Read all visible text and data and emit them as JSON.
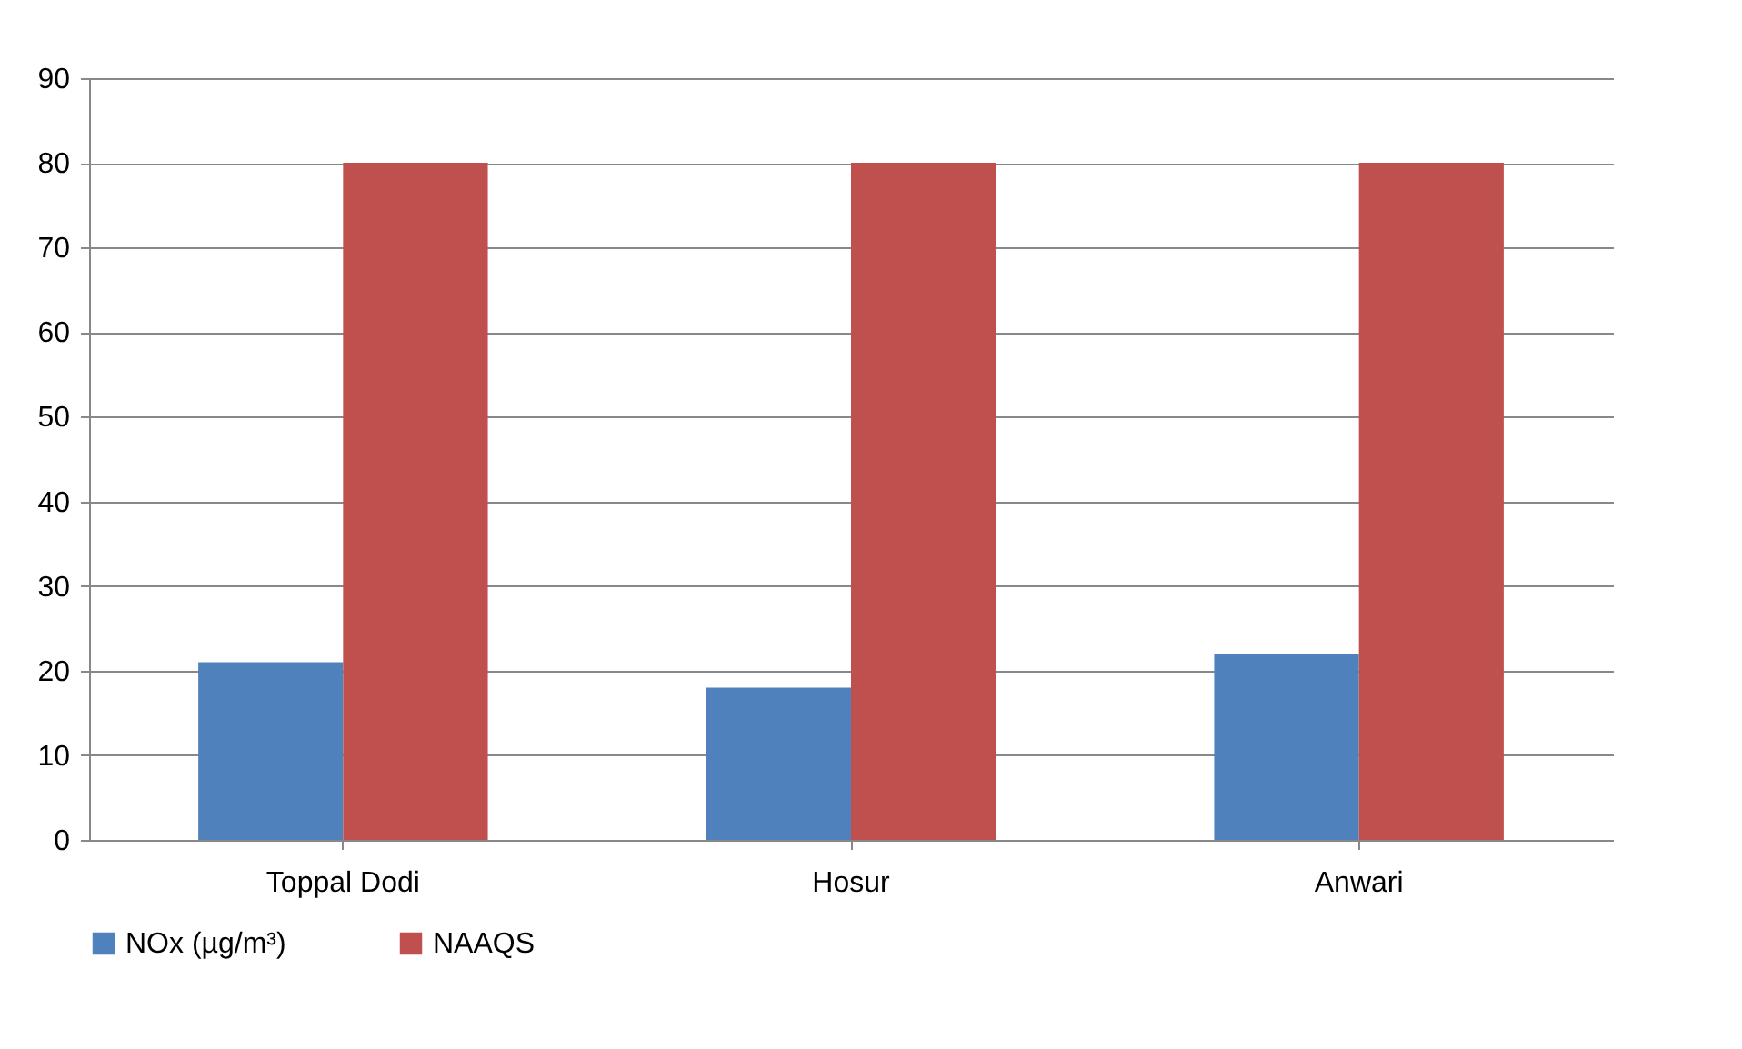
{
  "chart_data": {
    "type": "bar",
    "categories": [
      "Toppal Dodi",
      "Hosur",
      "Anwari"
    ],
    "series": [
      {
        "name": "NOx (µg/m³)",
        "color": "#4f81bd",
        "values": [
          21,
          18,
          22
        ]
      },
      {
        "name": "NAAQS",
        "color": "#c0504d",
        "values": [
          80,
          80,
          80
        ]
      }
    ],
    "ylim": [
      0,
      90
    ],
    "yticks": [
      0,
      10,
      20,
      30,
      40,
      50,
      60,
      70,
      80,
      90
    ],
    "grid": "y",
    "legend": "bottom"
  }
}
